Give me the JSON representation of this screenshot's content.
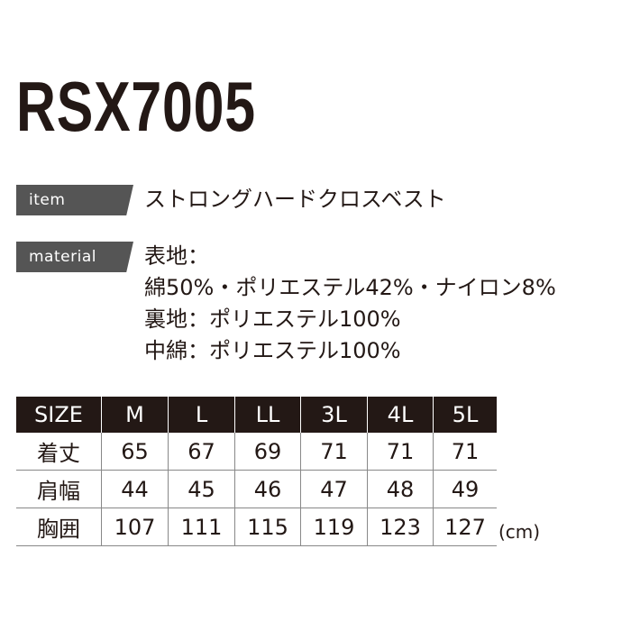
{
  "title": "RSX7005",
  "item": {
    "label": "item",
    "value": "ストロングハードクロスベスト"
  },
  "material": {
    "label": "material",
    "lines": [
      "表地：",
      "綿50%・ポリエステル42%・ナイロン8%",
      "裏地：ポリエステル100%",
      "中綿：ポリエステル100%"
    ]
  },
  "table": {
    "header": [
      "SIZE",
      "M",
      "L",
      "LL",
      "3L",
      "4L",
      "5L"
    ],
    "rows": [
      [
        "着丈",
        "65",
        "67",
        "69",
        "71",
        "71",
        "71"
      ],
      [
        "肩幅",
        "44",
        "45",
        "46",
        "47",
        "48",
        "49"
      ],
      [
        "胸囲",
        "107",
        "111",
        "115",
        "119",
        "123",
        "127"
      ]
    ]
  },
  "unit": "(cm)"
}
